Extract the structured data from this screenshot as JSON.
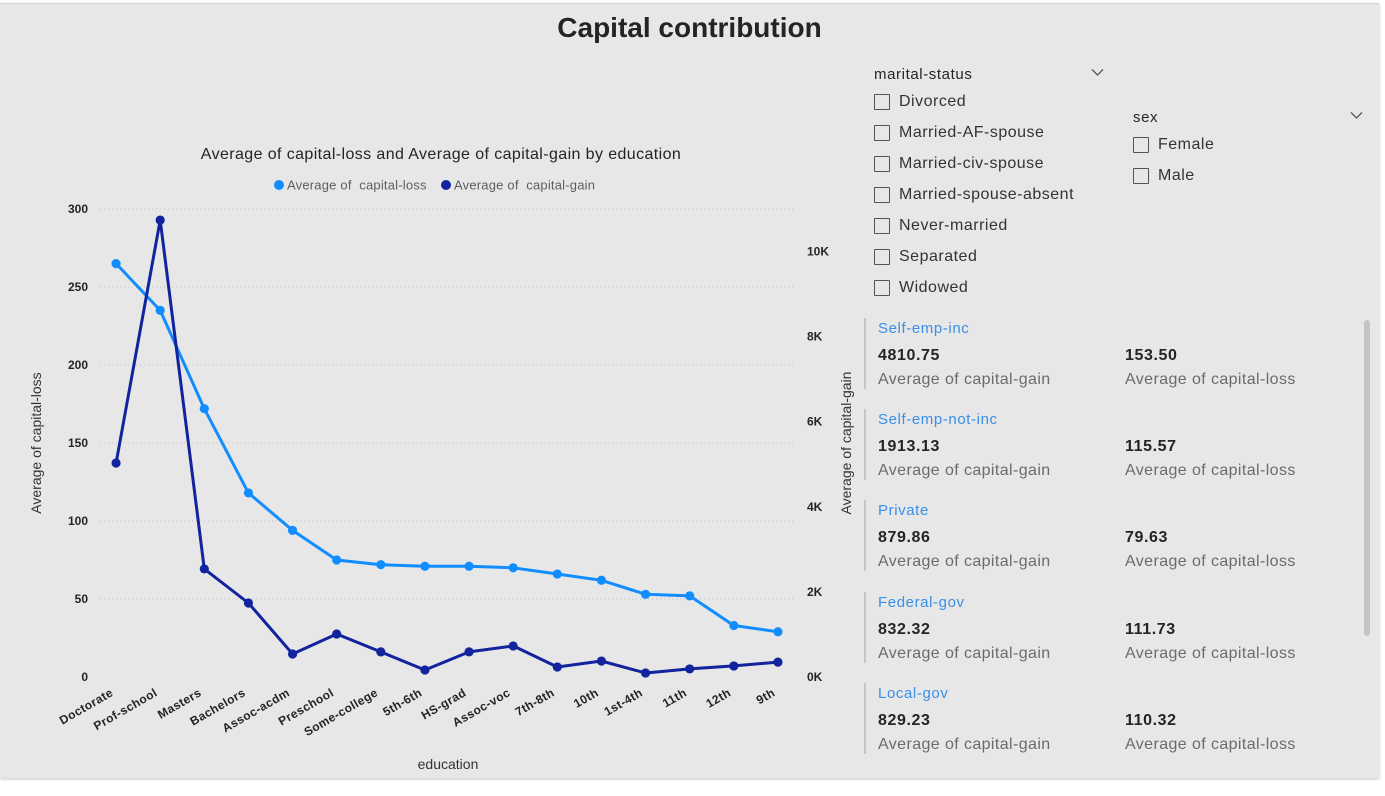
{
  "page": {
    "title": "Capital contribution"
  },
  "chart_data": {
    "type": "line",
    "title": "Average of capital-loss and Average of capital-gain by education",
    "xlabel": "education",
    "ylabel": "Average of capital-loss",
    "y2label": "Average of capital-gain",
    "categories": [
      "Doctorate",
      "Prof-school",
      "Masters",
      "Bachelors",
      "Assoc-acdm",
      "Preschool",
      "Some-college",
      "5th-6th",
      "HS-grad",
      "Assoc-voc",
      "7th-8th",
      "10th",
      "1st-4th",
      "11th",
      "12th",
      "9th"
    ],
    "ylim": [
      0,
      300
    ],
    "y_ticks": [
      300,
      250,
      200,
      150,
      100,
      50,
      0
    ],
    "y2lim": [
      0,
      11000
    ],
    "y2_ticks": [
      10000,
      8000,
      6000,
      4000,
      2000,
      0
    ],
    "y2_tick_labels": [
      "10K",
      "8K",
      "6K",
      "4K",
      "2K",
      "0K"
    ],
    "grid": true,
    "legend_position": "top",
    "series": [
      {
        "name": "Average of  capital-loss",
        "axis": "left",
        "color": "#118DFF",
        "values": [
          265,
          235,
          172,
          118,
          94,
          75,
          72,
          71,
          71,
          70,
          66,
          62,
          53,
          52,
          33,
          29
        ]
      },
      {
        "name": "Average of  capital-gain",
        "axis": "right",
        "color": "#12239E",
        "values": [
          5030,
          10740,
          2540,
          1740,
          540,
          1010,
          590,
          165,
          590,
          730,
          235,
          375,
          95,
          190,
          260,
          350
        ]
      }
    ]
  },
  "slicers": {
    "marital_status": {
      "header": "marital-status",
      "items": [
        "Divorced",
        "Married-AF-spouse",
        "Married-civ-spouse",
        "Married-spouse-absent",
        "Never-married",
        "Separated",
        "Widowed"
      ],
      "checked": [
        false,
        false,
        false,
        false,
        false,
        false,
        false
      ]
    },
    "sex": {
      "header": "sex",
      "items": [
        "Female",
        "Male"
      ],
      "checked": [
        false,
        false
      ]
    }
  },
  "icons": {
    "dropdown": "chevron-down-icon",
    "checkbox": "checkbox-unchecked"
  },
  "cards": [
    {
      "category": "Self-emp-inc",
      "gain": "4810.75",
      "gain_label": "Average of capital-gain",
      "loss": "153.50",
      "loss_label": "Average of capital-loss"
    },
    {
      "category": "Self-emp-not-inc",
      "gain": "1913.13",
      "gain_label": "Average of capital-gain",
      "loss": "115.57",
      "loss_label": "Average of capital-loss"
    },
    {
      "category": "Private",
      "gain": "879.86",
      "gain_label": "Average of capital-gain",
      "loss": "79.63",
      "loss_label": "Average of capital-loss"
    },
    {
      "category": "Federal-gov",
      "gain": "832.32",
      "gain_label": "Average of capital-gain",
      "loss": "111.73",
      "loss_label": "Average of capital-loss"
    },
    {
      "category": "Local-gov",
      "gain": "829.23",
      "gain_label": "Average of capital-gain",
      "loss": "110.32",
      "loss_label": "Average of capital-loss"
    }
  ],
  "colors": {
    "background": "#e7e7e7",
    "card_category": "#3a8fe8",
    "text": "#252423",
    "muted": "#6b6b6b"
  }
}
